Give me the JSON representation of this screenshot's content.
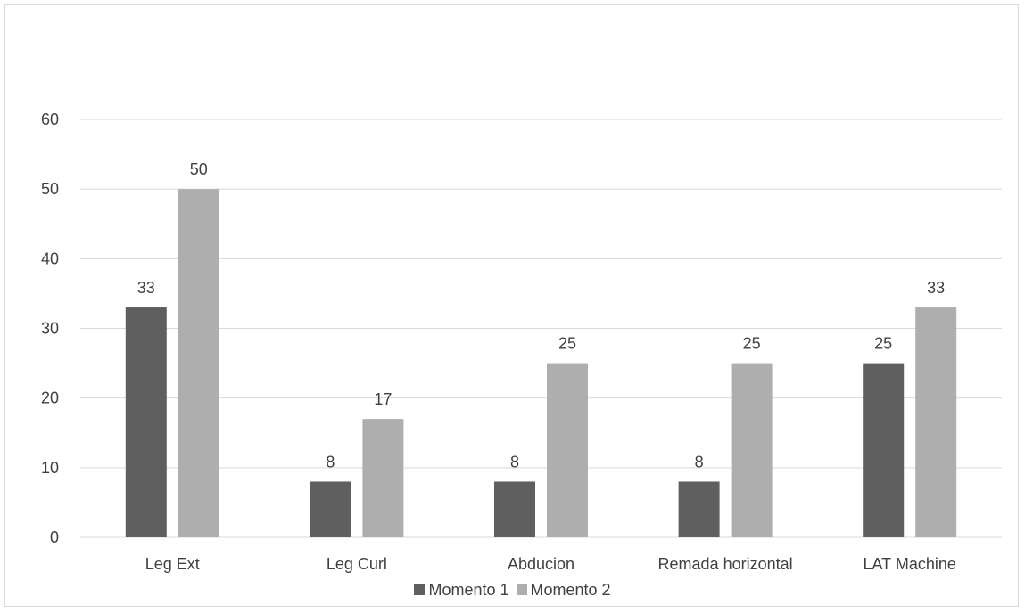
{
  "chart_data": {
    "type": "bar",
    "categories": [
      "Leg Ext",
      "Leg Curl",
      "Abducion",
      "Remada horizontal",
      "LAT Machine"
    ],
    "series": [
      {
        "name": "Momento 1",
        "values": [
          33,
          8,
          8,
          8,
          25
        ],
        "color": "#5f5f5f"
      },
      {
        "name": "Momento 2",
        "values": [
          50,
          17,
          25,
          25,
          33
        ],
        "color": "#aeaeae"
      }
    ],
    "ylim": [
      0,
      60
    ],
    "yticks": [
      0,
      10,
      20,
      30,
      40,
      50,
      60
    ],
    "grid": true,
    "data_labels": true,
    "legend_position": "bottom"
  }
}
